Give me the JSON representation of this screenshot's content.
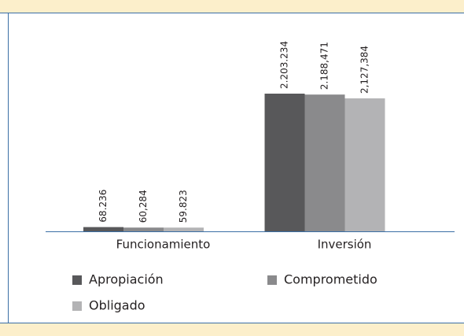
{
  "chart_data": {
    "type": "bar",
    "categories": [
      "Funcionamiento",
      "Inversión"
    ],
    "series": [
      {
        "name": "Apropiación",
        "color": "#58585a",
        "values": [
          68236,
          2203234
        ],
        "value_labels": [
          "68.236",
          "2.203.234"
        ]
      },
      {
        "name": "Comprometido",
        "color": "#8a8a8c",
        "values": [
          60284,
          2188471
        ],
        "value_labels": [
          "60,284",
          "2.188,471"
        ]
      },
      {
        "name": "Obligado",
        "color": "#b3b3b5",
        "values": [
          59823,
          2127384
        ],
        "value_labels": [
          "59.823",
          "2,127,384"
        ]
      }
    ]
  }
}
